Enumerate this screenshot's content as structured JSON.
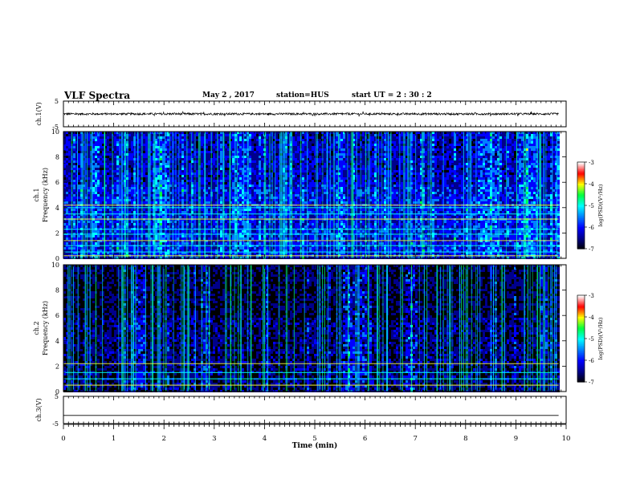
{
  "header": {
    "title": "VLF Spectra",
    "date": "May 2 , 2017",
    "station": "station=HUS",
    "start": "start UT = 2 : 30 : 2"
  },
  "colors": {
    "trace": "#000000",
    "colormap": [
      "#000000",
      "#00008b",
      "#0000ff",
      "#0080ff",
      "#00ffff",
      "#00ff40",
      "#ffff00",
      "#ff0000",
      "#ffffff"
    ]
  },
  "chart_data": [
    {
      "type": "line",
      "panel": "ch1-waveform",
      "ylabel": "ch.1(V)",
      "ylim": [
        -5,
        5
      ],
      "yticks": [
        "5",
        "-5"
      ],
      "xlim": [
        0,
        10
      ],
      "description_values": {
        "baseline_v": 0.0,
        "noise_amplitude_v": 0.4
      }
    },
    {
      "type": "heatmap",
      "panel": "ch1-spectrogram",
      "ylabel": "ch.1\nFrequency (kHz)",
      "ylim": [
        0,
        10
      ],
      "yticks": [
        "0",
        "2",
        "4",
        "6",
        "8",
        "10"
      ],
      "xlim": [
        0,
        9.85
      ],
      "colorbar": {
        "label": "log(PSD)(V²/Hz)",
        "ticks": [
          "-3",
          "-4",
          "-5",
          "-6",
          "-7"
        ],
        "range": [
          -7,
          -3
        ]
      },
      "base_level": -5.9,
      "horizontal_lines_khz": [
        0.2,
        0.5,
        1.0,
        1.4,
        1.9,
        2.3,
        3.1,
        3.5,
        4.0,
        4.2
      ],
      "bright_bursts_min": [
        [
          1.8,
          2.1
        ],
        [
          3.4,
          3.7
        ],
        [
          5.4,
          5.6
        ],
        [
          8.2,
          8.7
        ],
        [
          9.0,
          9.4
        ]
      ]
    },
    {
      "type": "heatmap",
      "panel": "ch2-spectrogram",
      "ylabel": "ch.2\nFrequency (kHz)",
      "ylim": [
        0,
        10
      ],
      "yticks": [
        "0",
        "2",
        "4",
        "6",
        "8",
        "10"
      ],
      "xlim": [
        0,
        9.85
      ],
      "colorbar": {
        "label": "log(PSD)(V²/Hz)",
        "ticks": [
          "-3",
          "-4",
          "-5",
          "-6",
          "-7"
        ],
        "range": [
          -7,
          -3
        ]
      },
      "base_level": -6.4,
      "horizontal_lines_khz": [
        0.5,
        1.0,
        1.5,
        2.2
      ],
      "bright_bursts_min": [
        [
          1.3,
          1.6
        ],
        [
          2.7,
          2.9
        ],
        [
          5.6,
          6.0
        ],
        [
          6.8,
          7.0
        ]
      ]
    },
    {
      "type": "line",
      "panel": "ch3-waveform",
      "ylabel": "ch.3(V)",
      "ylim": [
        -5,
        5
      ],
      "yticks": [
        "5",
        "-5"
      ],
      "xlim": [
        0,
        10
      ],
      "xlabel": "Time (min)",
      "xticks": [
        "0",
        "1",
        "2",
        "3",
        "4",
        "5",
        "6",
        "7",
        "8",
        "9",
        "10"
      ],
      "description_values": {
        "baseline_v": -2.0
      }
    }
  ]
}
